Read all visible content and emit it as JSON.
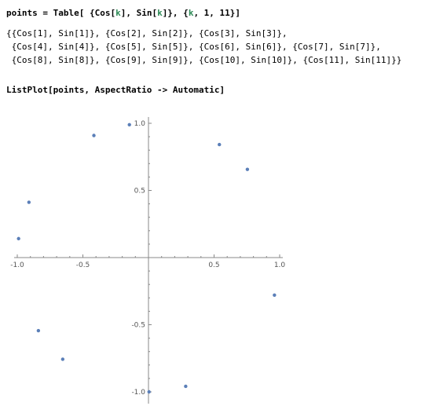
{
  "input1": {
    "prefix": "points = Table[ {Cos[",
    "k1": "k",
    "mid": "], Sin[",
    "k2": "k",
    "mid2": "]}, {",
    "k3": "k",
    "suffix": ", 1, 11}]"
  },
  "output_lines": [
    "{{Cos[1], Sin[1]}, {Cos[2], Sin[2]}, {Cos[3], Sin[3]},",
    " {Cos[4], Sin[4]}, {Cos[5], Sin[5]}, {Cos[6], Sin[6]}, {Cos[7], Sin[7]},",
    " {Cos[8], Sin[8]}, {Cos[9], Sin[9]}, {Cos[10], Sin[10]}, {Cos[11], Sin[11]}}"
  ],
  "input2": "ListPlot[points, AspectRatio -> Automatic]",
  "colors": {
    "point": "#5b7fb8",
    "axis": "#888888"
  },
  "chart_data": {
    "type": "scatter",
    "x": [
      0.5403,
      -0.4161,
      -0.99,
      -0.6536,
      0.2837,
      0.9602,
      0.7539,
      -0.1455,
      -0.9111,
      -0.8391,
      0.0044
    ],
    "y": [
      0.8415,
      0.9093,
      0.1411,
      -0.7568,
      -0.9589,
      -0.2794,
      0.657,
      0.9894,
      0.4121,
      -0.544,
      -1.0
    ],
    "xlim": [
      -1.0,
      1.0
    ],
    "ylim": [
      -1.0,
      1.0
    ],
    "xticks": [
      "-1.0",
      "-0.5",
      "0.5",
      "1.0"
    ],
    "yticks": [
      "1.0",
      "0.5",
      "-0.5",
      "-1.0"
    ],
    "grid": false,
    "title": "",
    "xlabel": "",
    "ylabel": ""
  }
}
